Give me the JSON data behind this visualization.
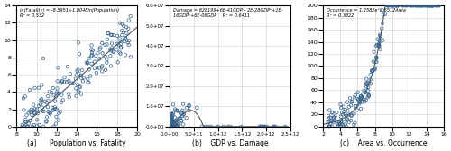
{
  "fig_width": 5.0,
  "fig_height": 1.68,
  "dpi": 100,
  "background_color": "#ffffff",
  "marker_color": "#34608a",
  "marker_size": 2.5,
  "marker_style": "o",
  "marker_facecolor": "none",
  "line_color": "#555555",
  "subplot_a": {
    "xlabel": "Population vs. Fatality",
    "xlabel_label": "(a)",
    "xlim": [
      8,
      20
    ],
    "ylim": [
      0,
      14
    ],
    "xticks": [
      8,
      10,
      12,
      14,
      16,
      18,
      20
    ],
    "yticks": [
      0,
      2,
      4,
      6,
      8,
      10,
      12,
      14
    ],
    "annotation": "ln(Fatality) = -8.5951+1.0048ln(Population)\nR² = 0.532",
    "slope": 1.0048,
    "intercept": -8.5951
  },
  "subplot_b": {
    "xlabel": "GDP vs. Damage",
    "xlabel_label": "(b)",
    "xlim": [
      0,
      2500000000000.0
    ],
    "ylim": [
      0,
      60000000.0
    ],
    "xticks": [
      0,
      500000000000.0,
      1000000000000.0,
      1500000000000.0,
      2000000000000.0,
      2500000000000.0
    ],
    "xtick_labels": [
      "0.0+00",
      "5.0+11",
      "1.0+12",
      "1.5+12",
      "2.0+12",
      "2.5+12"
    ],
    "yticks": [
      0,
      10000000.0,
      20000000.0,
      30000000.0,
      40000000.0,
      50000000.0,
      60000000.0
    ],
    "ytick_labels": [
      "0.0+00",
      "1.0+07",
      "2.0+07",
      "3.0+07",
      "4.0+07",
      "5.0+07",
      "6.0+07"
    ],
    "annotation": "Damage = 828199+6E-41GDP⁴- 2E-28GDP³+1E-\n16GDP²+6E-06GDP    R² = 0.6411"
  },
  "subplot_c": {
    "xlabel": "Area vs. Occurrence",
    "xlabel_label": "(c)",
    "xlim": [
      2,
      16
    ],
    "ylim": [
      0,
      200
    ],
    "xticks": [
      2,
      4,
      6,
      8,
      10,
      12,
      14,
      16
    ],
    "yticks": [
      0,
      20,
      40,
      60,
      80,
      100,
      120,
      140,
      160,
      180,
      200
    ],
    "annotation": "Occurrence = 1.2582e°0.5512Area\nR² = 0.3822",
    "a": 1.2582,
    "b": 0.5512
  }
}
